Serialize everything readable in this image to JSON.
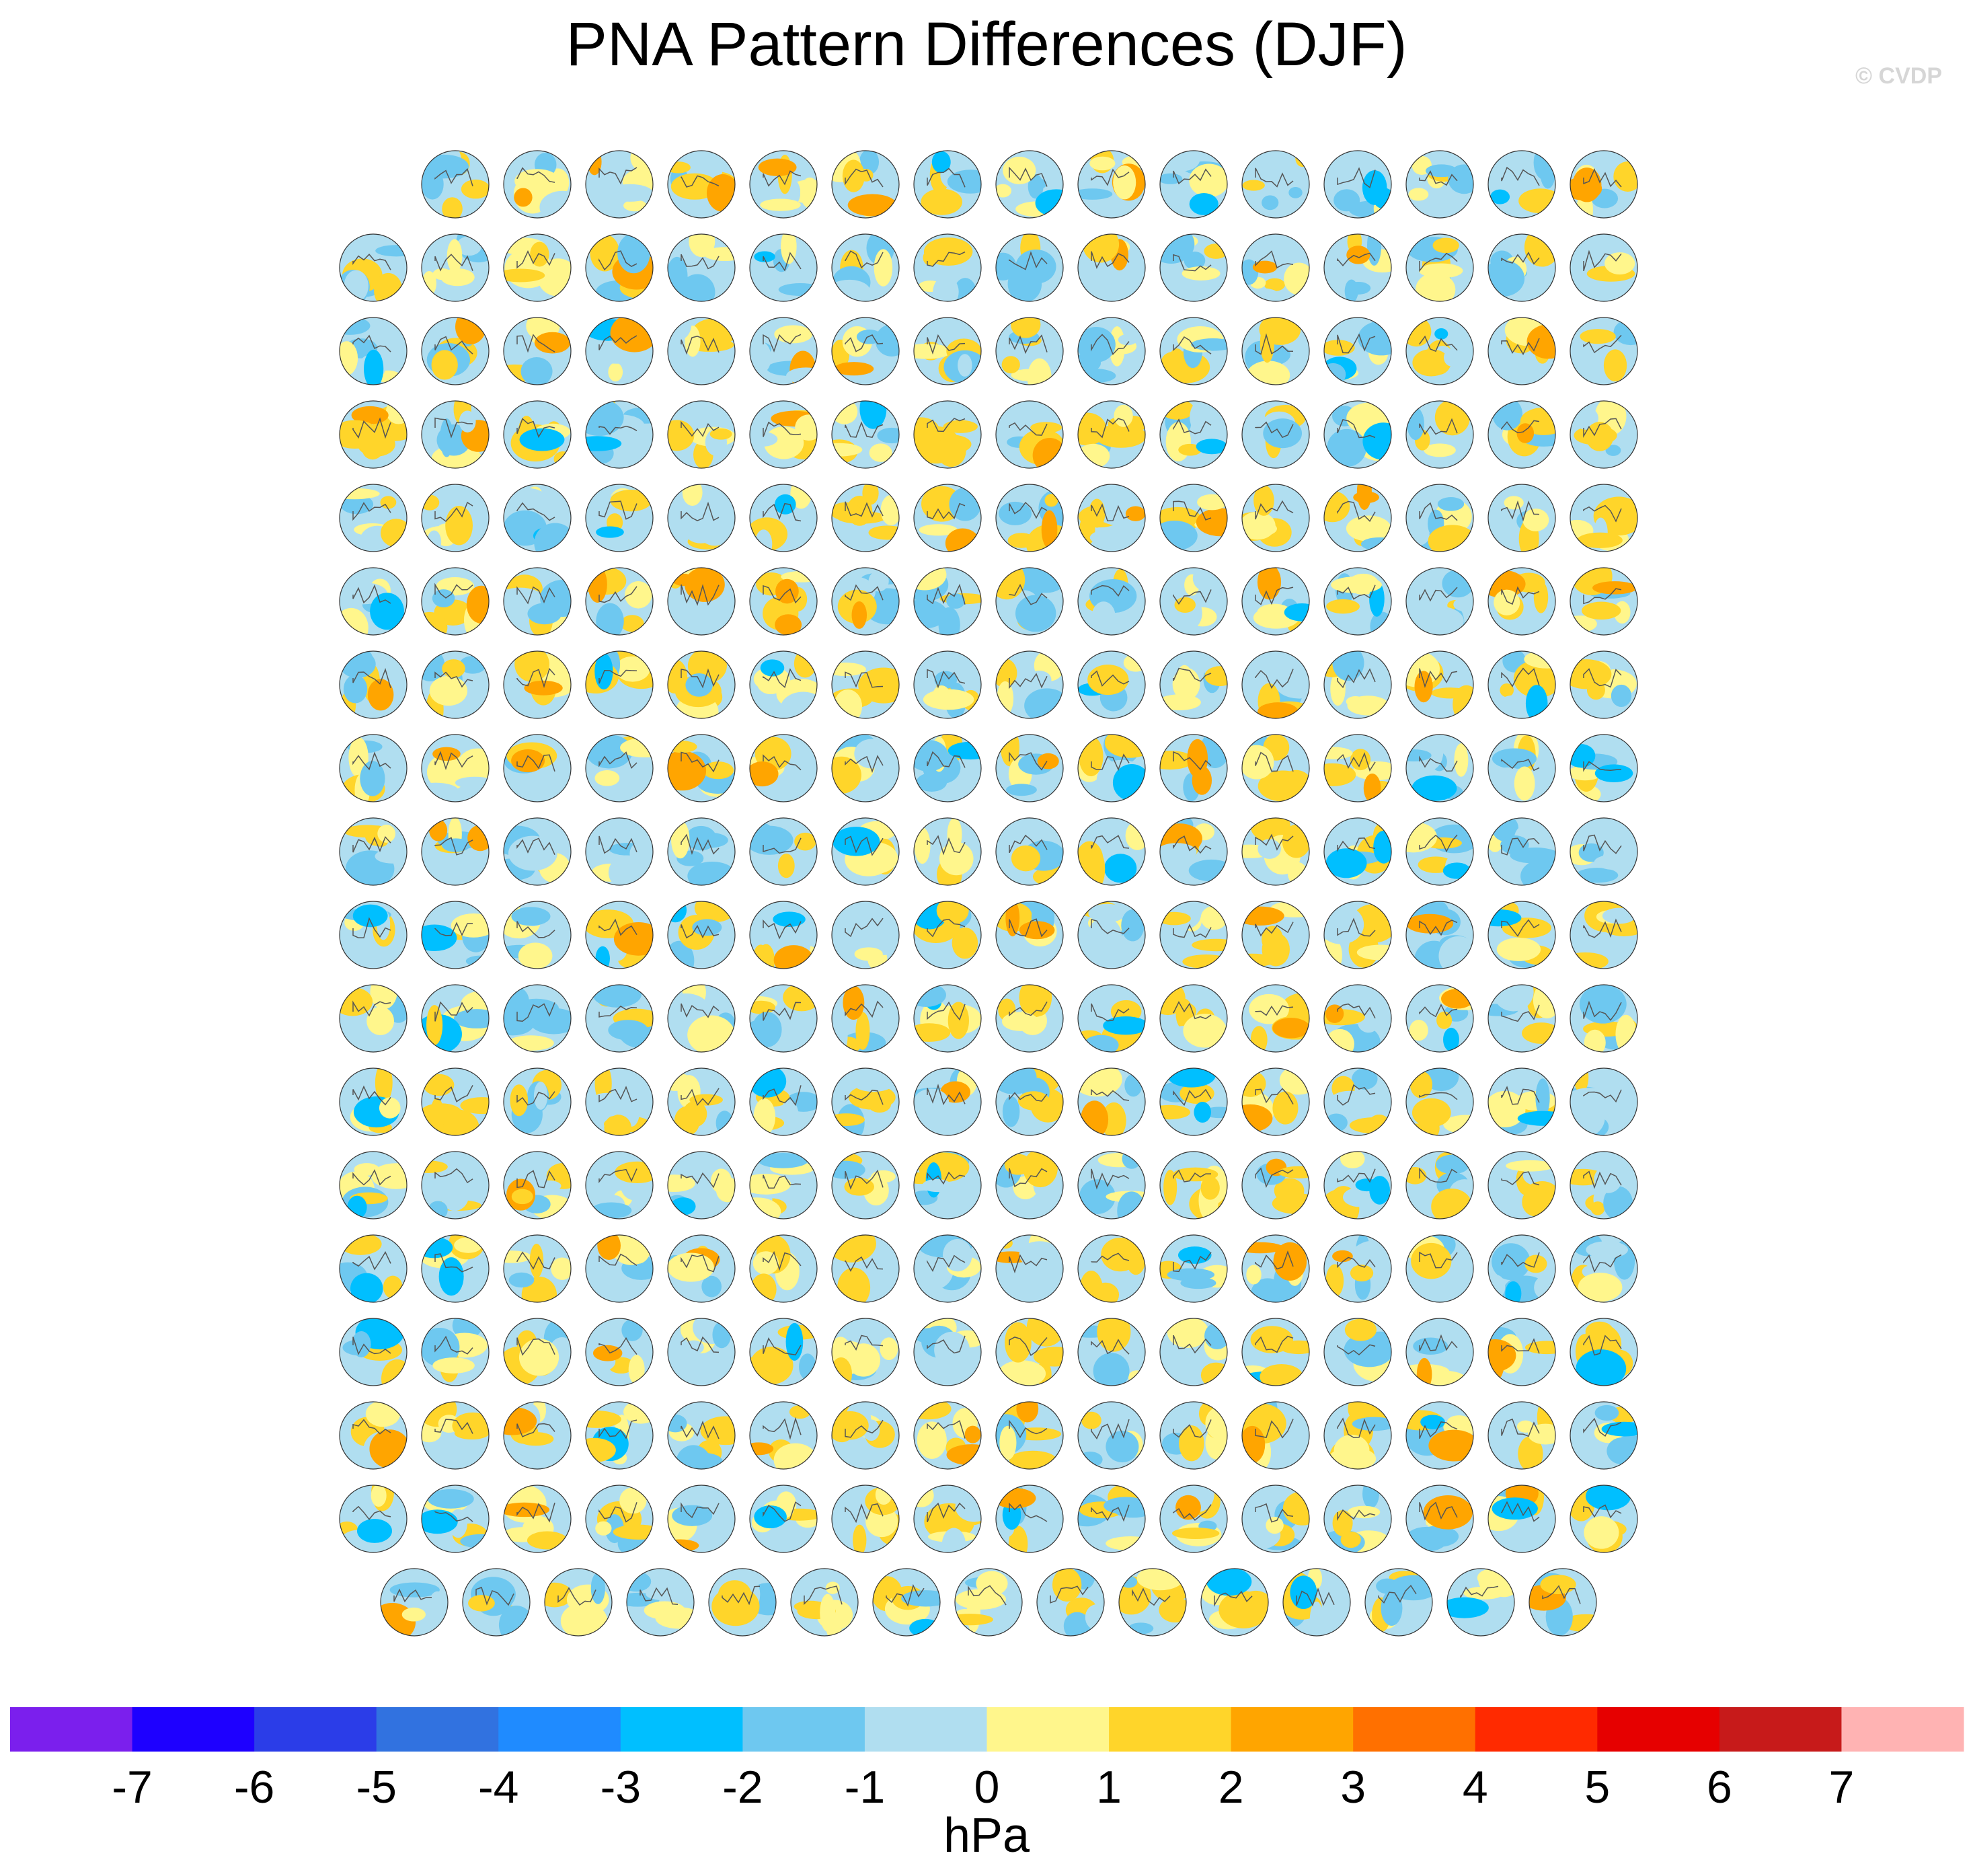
{
  "title": "PNA Pattern Differences (DJF)",
  "watermark": "© CVDP",
  "colorbar_units": "hPa",
  "chart_data": {
    "type": "heatmap",
    "title": "PNA Pattern Differences (DJF)",
    "description_of_panels": "panel",
    "panel_grid": {
      "rows": [
        {
          "count": 15,
          "offset_cols": 1
        },
        {
          "count": 16,
          "offset_cols": 0
        },
        {
          "count": 16,
          "offset_cols": 0
        },
        {
          "count": 16,
          "offset_cols": 0
        },
        {
          "count": 16,
          "offset_cols": 0
        },
        {
          "count": 16,
          "offset_cols": 0
        },
        {
          "count": 16,
          "offset_cols": 0
        },
        {
          "count": 16,
          "offset_cols": 0
        },
        {
          "count": 16,
          "offset_cols": 0
        },
        {
          "count": 16,
          "offset_cols": 0
        },
        {
          "count": 16,
          "offset_cols": 0
        },
        {
          "count": 16,
          "offset_cols": 0
        },
        {
          "count": 16,
          "offset_cols": 0
        },
        {
          "count": 16,
          "offset_cols": 0
        },
        {
          "count": 16,
          "offset_cols": 0
        },
        {
          "count": 16,
          "offset_cols": 0
        },
        {
          "count": 16,
          "offset_cols": 0
        },
        {
          "count": 15,
          "offset_cols": 0.5
        }
      ]
    },
    "colorbar": {
      "units": "hPa",
      "tick_labels": [
        "-7",
        "-6",
        "-5",
        "-4",
        "-3",
        "-2",
        "-1",
        "0",
        "1",
        "2",
        "3",
        "4",
        "5",
        "6",
        "7"
      ],
      "colors": [
        "#7b1fed",
        "#1e00ff",
        "#2b3de8",
        "#3172e0",
        "#1f8bff",
        "#00bfff",
        "#6ec8f0",
        "#b0def0",
        "#fff68c",
        "#ffd52a",
        "#ffa500",
        "#ff7000",
        "#ff2a00",
        "#e60000",
        "#c71a1a",
        "#ffb3b3"
      ]
    }
  }
}
